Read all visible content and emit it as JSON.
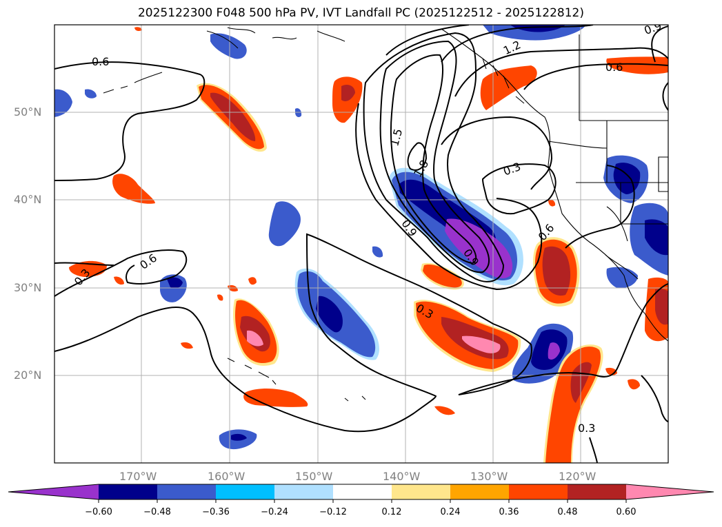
{
  "title": "2025122300 F048 500 hPa PV, IVT Landfall PC (2025122512 - 2025122812)",
  "map": {
    "lat_labels": [
      "50°N",
      "40°N",
      "30°N",
      "20°N"
    ],
    "lon_labels": [
      "170°W",
      "160°W",
      "150°W",
      "140°W",
      "130°W",
      "120°W"
    ],
    "contour_labels": [
      "0.6",
      "0.3",
      "0.6",
      "1.5",
      "1.8",
      "0.9",
      "1.2",
      "0.9",
      "0.3",
      "0.6",
      "0.9",
      "0.6",
      "0.3",
      "0.3"
    ],
    "extent_lon": [
      -180,
      -110
    ],
    "extent_lat": [
      10,
      60
    ]
  },
  "colorbar": {
    "ticks": [
      "−0.60",
      "−0.48",
      "−0.36",
      "−0.24",
      "−0.12",
      "0.12",
      "0.24",
      "0.36",
      "0.48",
      "0.60"
    ],
    "colors": [
      "#9932cc",
      "#00008b",
      "#3b5bcc",
      "#00bfff",
      "#b0e0ff",
      "#ffffff",
      "#ffe68c",
      "#ffa500",
      "#ff4500",
      "#b22222",
      "#ff88b0"
    ]
  }
}
